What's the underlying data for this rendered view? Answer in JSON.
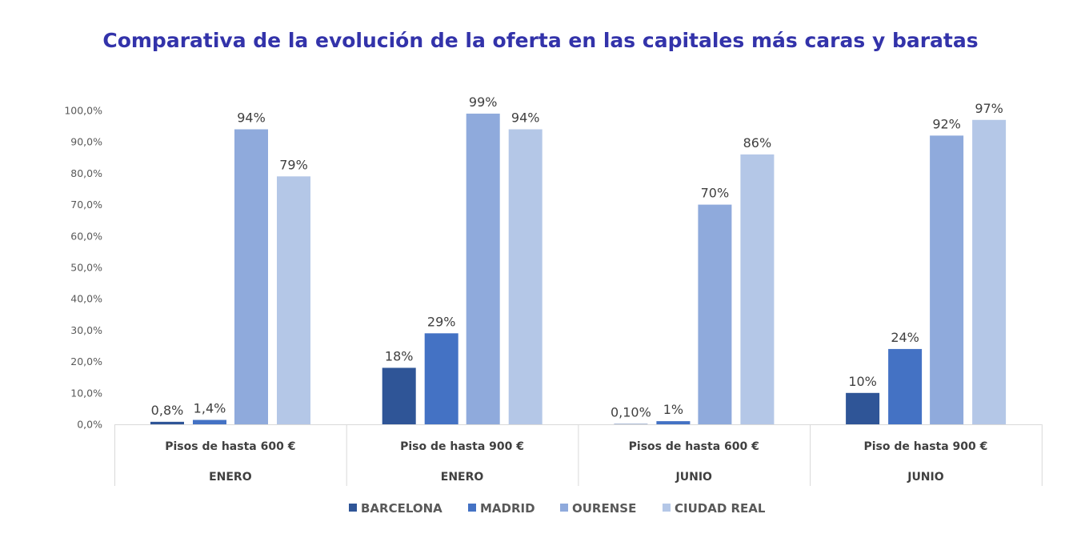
{
  "chart_data": {
    "type": "bar",
    "title": "Comparativa de la evolución de la oferta en las capitales más caras y baratas",
    "categories": [
      {
        "label": "Pisos de hasta 600 €",
        "group": "ENERO"
      },
      {
        "label": "Piso de hasta 900 €",
        "group": "ENERO"
      },
      {
        "label": "Pisos de hasta 600 €",
        "group": "JUNIO"
      },
      {
        "label": "Piso de hasta 900 €",
        "group": "JUNIO"
      }
    ],
    "series": [
      {
        "name": "BARCELONA",
        "color": "#2F5597",
        "values": [
          0.8,
          18,
          0.1,
          10
        ],
        "labels": [
          "0,8%",
          "18%",
          "0,10%",
          "10%"
        ]
      },
      {
        "name": "MADRID",
        "color": "#4472C4",
        "values": [
          1.4,
          29,
          1,
          24
        ],
        "labels": [
          "1,4%",
          "29%",
          "1%",
          "24%"
        ]
      },
      {
        "name": "OURENSE",
        "color": "#8FAADC",
        "values": [
          94,
          99,
          70,
          92
        ],
        "labels": [
          "94%",
          "99%",
          "70%",
          "92%"
        ]
      },
      {
        "name": "CIUDAD REAL",
        "color": "#B4C7E7",
        "values": [
          79,
          94,
          86,
          97
        ],
        "labels": [
          "79%",
          "94%",
          "86%",
          "97%"
        ]
      }
    ],
    "yticks": [
      "0,0%",
      "10,0%",
      "20,0%",
      "30,0%",
      "40,0%",
      "50,0%",
      "60,0%",
      "70,0%",
      "80,0%",
      "90,0%",
      "100,0%"
    ],
    "ylim": [
      0,
      100
    ],
    "grid": false,
    "legend_position": "bottom",
    "xlabel": "",
    "ylabel": ""
  }
}
